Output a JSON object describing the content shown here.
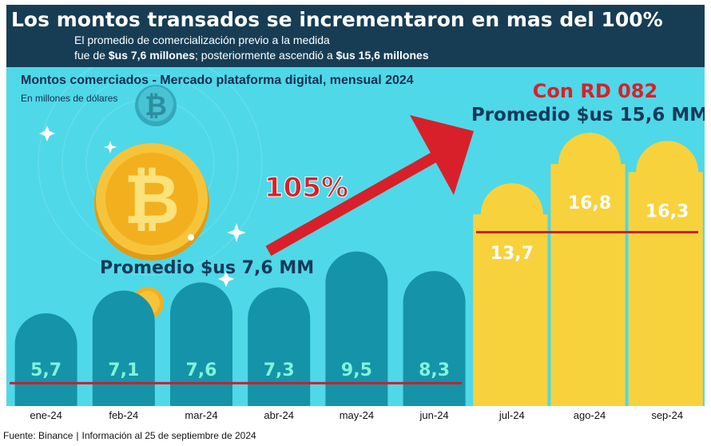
{
  "header": {
    "title": "Los montos transados se incrementaron en mas del 100%",
    "line1": "El promedio de comercialización previo a la medida",
    "line2_a": "fue de ",
    "line2_b": "$us 7,6 millones",
    "line2_c": "; posteriormente ascendió a ",
    "line2_d": "$us 15,6 millones"
  },
  "chart_title": "Montos comerciados - Mercado plataforma digital, mensual 2024",
  "chart_subtitle": "En millones de dólares",
  "annotations": {
    "before_avg": "Promedio $us 7,6 MM",
    "rd_label": "Con RD 082",
    "after_avg": "Promedio $us 15,6 MM",
    "increase": "105%"
  },
  "footer": {
    "source": "Fuente: Binance",
    "info": "Información al 25 de septiembre de 2024"
  },
  "colors": {
    "background": "#4fd8e8",
    "before_bars": "#1593a8",
    "before_labels": "#7ff4d8",
    "after_bars": "#f8d23c",
    "after_labels": "#ffffff",
    "avg_lines": "#c82030",
    "arrow": "#d8202a",
    "header_bg": "#173d55",
    "coin": "#f2b01e"
  },
  "chart_data": {
    "type": "bar",
    "categories": [
      "ene-24",
      "feb-24",
      "mar-24",
      "abr-24",
      "may-24",
      "jun-24",
      "jul-24",
      "ago-24",
      "sep-24"
    ],
    "values": [
      5.7,
      7.1,
      7.6,
      7.3,
      9.5,
      8.3,
      13.7,
      16.8,
      16.3
    ],
    "value_labels": [
      "5,7",
      "7,1",
      "7,6",
      "7,3",
      "9,5",
      "8,3",
      "13,7",
      "16,8",
      "16,3"
    ],
    "groups": [
      "before",
      "before",
      "before",
      "before",
      "before",
      "before",
      "after",
      "after",
      "after"
    ],
    "averages": {
      "before": 7.6,
      "after": 15.6
    },
    "title": "Montos comerciados - Mercado plataforma digital, mensual 2024",
    "ylabel": "En millones de dólares"
  }
}
